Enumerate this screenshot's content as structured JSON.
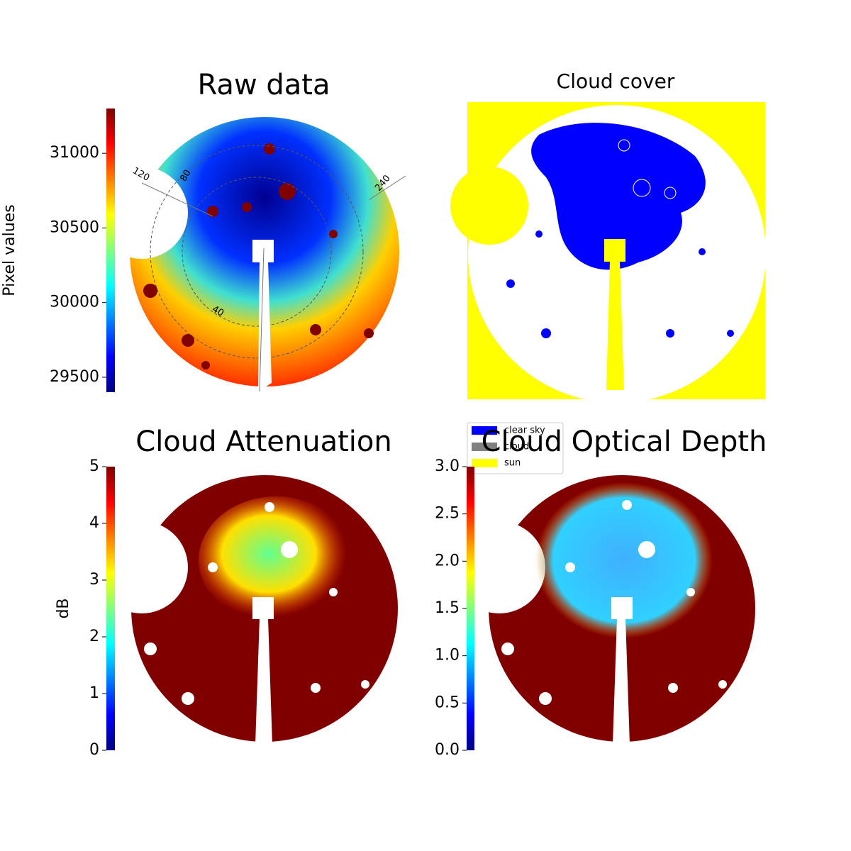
{
  "chart_data": [
    {
      "type": "image",
      "title": "Raw data",
      "colorbar_label": "Pixel values",
      "colormap": "jet",
      "ylim": [
        29400,
        31300
      ],
      "yticks": [
        29500,
        30000,
        30500,
        31000
      ],
      "annotations": [
        "120",
        "80",
        "40",
        "240"
      ]
    },
    {
      "type": "image",
      "title": "Cloud cover",
      "series": [
        {
          "name": "clear sky",
          "color": "#0000ff"
        },
        {
          "name": "cloud",
          "color": "#808080"
        },
        {
          "name": "sun",
          "color": "#ffff00"
        }
      ]
    },
    {
      "type": "image",
      "title": "Cloud Attenuation",
      "colorbar_label": "dB",
      "colormap": "jet",
      "ylim": [
        0,
        5
      ],
      "yticks": [
        0,
        1,
        2,
        3,
        4,
        5
      ]
    },
    {
      "type": "image",
      "title": "Cloud Optical Depth",
      "colormap": "jet",
      "ylim": [
        0,
        3
      ],
      "yticks": [
        {
          "value": 0,
          "label": "0.0"
        },
        {
          "value": 0.5,
          "label": "0.5"
        },
        {
          "value": 1,
          "label": "1.0"
        },
        {
          "value": 1.5,
          "label": "1.5"
        },
        {
          "value": 2,
          "label": "2.0"
        },
        {
          "value": 2.5,
          "label": "2.5"
        },
        {
          "value": 3,
          "label": "3.0"
        }
      ]
    }
  ]
}
